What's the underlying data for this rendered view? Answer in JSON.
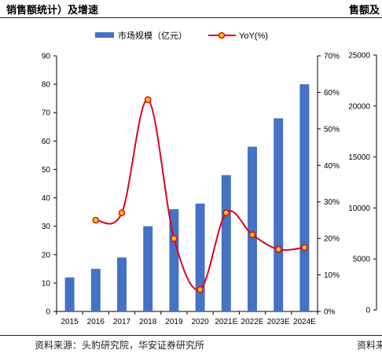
{
  "header": {
    "title_left": "销售额统计）及增速",
    "title_right": "售额及"
  },
  "footer": {
    "source_left": "资料来源：头豹研究院，华安证券研究所",
    "source_right": "资料来"
  },
  "chart_data": [
    {
      "type": "bar",
      "categories": [
        "2015",
        "2016",
        "2017",
        "2018",
        "2019",
        "2020",
        "2021E",
        "2022E",
        "2023E",
        "2024E"
      ],
      "series": [
        {
          "name": "市场规模（亿元）",
          "type": "bar",
          "axis": "left",
          "color": "#4472c4",
          "values": [
            12,
            15,
            19,
            30,
            36,
            38,
            48,
            58,
            68,
            80
          ]
        },
        {
          "name": "YoY(%)",
          "type": "line",
          "axis": "right",
          "color": "#e0001b",
          "values": [
            null,
            25,
            27,
            58,
            20,
            6,
            27,
            21,
            17,
            17.5
          ]
        }
      ],
      "ylim_left": [
        0,
        90
      ],
      "yticks_left": [
        "0",
        "10",
        "20",
        "30",
        "40",
        "50",
        "60",
        "70",
        "80",
        "90"
      ],
      "ylim_right": [
        0,
        70
      ],
      "yticks_right": [
        "0%",
        "10%",
        "20%",
        "30%",
        "40%",
        "50%",
        "60%",
        "70%"
      ],
      "legend": "top",
      "grid": false
    },
    {
      "type": "bar",
      "partial": true,
      "ylim": [
        0,
        25000
      ],
      "yticks": [
        "0",
        "5000",
        "10000",
        "15000",
        "20000",
        "25000"
      ]
    }
  ]
}
